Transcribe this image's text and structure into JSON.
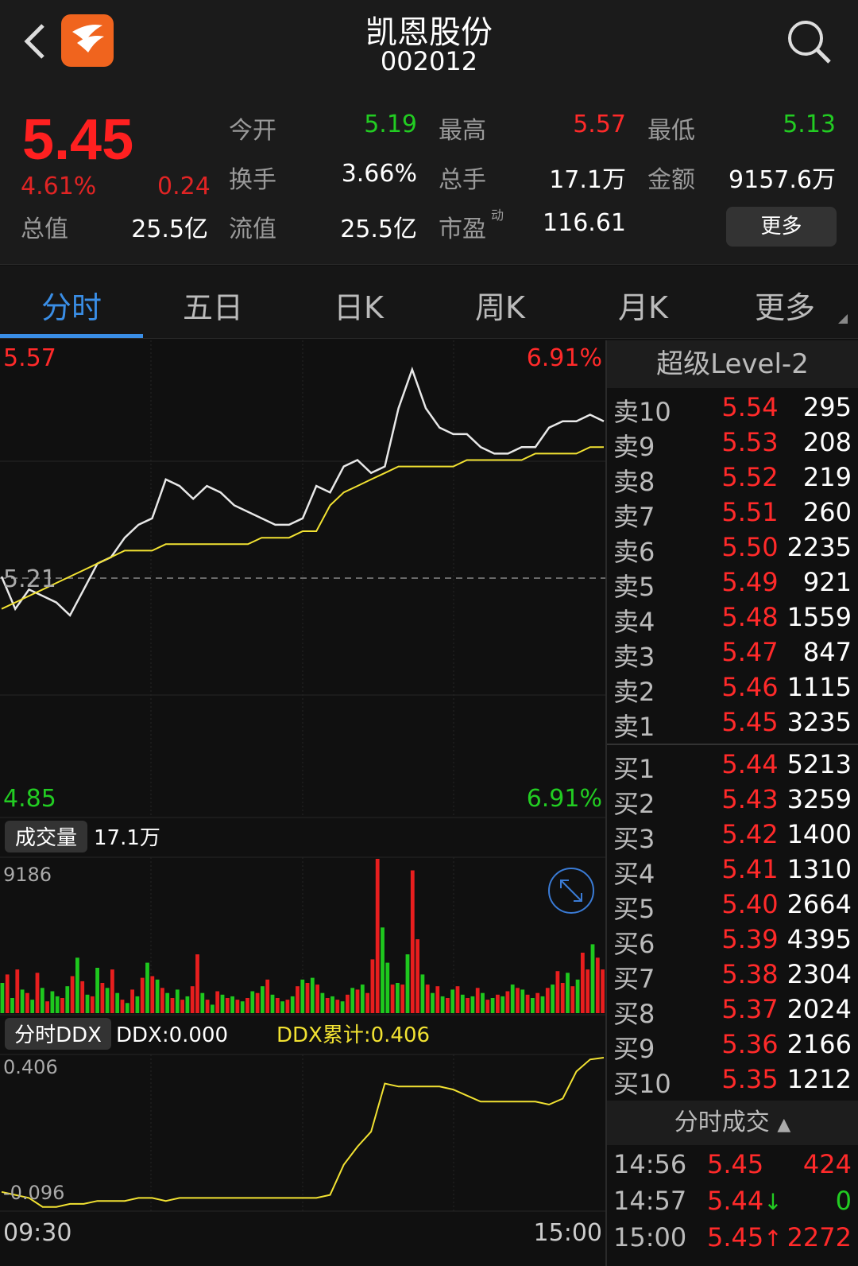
{
  "header": {
    "stock_name": "凯恩股份",
    "stock_code": "002012"
  },
  "quote": {
    "price": "5.45",
    "change_pct": "4.61%",
    "change": "0.24",
    "rows": [
      [
        {
          "label": "今开",
          "value": "5.19",
          "color": "#22cc22"
        },
        {
          "label": "最高",
          "value": "5.57",
          "color": "#ff2a2a"
        },
        {
          "label": "最低",
          "value": "5.13",
          "color": "#22cc22"
        }
      ],
      [
        {
          "label": "换手",
          "value": "3.66%",
          "color": "#ffffff"
        },
        {
          "label": "总手",
          "value": "17.1万",
          "color": "#ffffff"
        },
        {
          "label": "金额",
          "value": "9157.6万",
          "color": "#ffffff"
        }
      ],
      [
        {
          "label": "流值",
          "value": "25.5亿",
          "color": "#ffffff"
        },
        {
          "label": "市盈",
          "value": "116.61",
          "color": "#ffffff",
          "sup": "动"
        }
      ]
    ],
    "total_label": "总值",
    "total_value": "25.5亿",
    "more_label": "更多"
  },
  "tabs": [
    "分时",
    "五日",
    "日K",
    "周K",
    "月K",
    "更多"
  ],
  "chart": {
    "high_price": "5.57",
    "high_pct": "6.91%",
    "mid_price": "5.21",
    "low_price": "4.85",
    "low_pct": "6.91%",
    "volume_label": "成交量",
    "volume_value": "17.1万",
    "volume_max": "9186",
    "ddx_label": "分时DDX",
    "ddx_value": "DDX:0.000",
    "ddx_cum": "DDX累计:0.406",
    "ddx_top": "0.406",
    "ddx_bottom": "-0.096",
    "time_start": "09:30",
    "time_end": "15:00"
  },
  "chart_data": {
    "type": "line",
    "x_range": [
      "09:30",
      "15:00"
    ],
    "ylim": [
      4.85,
      5.57
    ],
    "reference_price": 5.21,
    "series": [
      {
        "values": [
          5.21,
          5.16,
          5.19,
          5.18,
          5.17,
          5.15,
          5.19,
          5.23,
          5.24,
          5.27,
          5.29,
          5.3,
          5.36,
          5.35,
          5.33,
          5.35,
          5.34,
          5.32,
          5.31,
          5.3,
          5.29,
          5.29,
          5.3,
          5.35,
          5.34,
          5.38,
          5.39,
          5.37,
          5.38,
          5.47,
          5.53,
          5.47,
          5.44,
          5.43,
          5.43,
          5.41,
          5.4,
          5.4,
          5.41,
          5.41,
          5.44,
          5.45,
          5.45,
          5.46,
          5.45
        ]
      },
      {
        "values": [
          5.16,
          5.17,
          5.18,
          5.19,
          5.2,
          5.21,
          5.22,
          5.23,
          5.24,
          5.25,
          5.25,
          5.25,
          5.26,
          5.26,
          5.26,
          5.26,
          5.26,
          5.26,
          5.26,
          5.27,
          5.27,
          5.27,
          5.28,
          5.28,
          5.32,
          5.34,
          5.35,
          5.36,
          5.37,
          5.38,
          5.38,
          5.38,
          5.38,
          5.38,
          5.39,
          5.39,
          5.39,
          5.39,
          5.39,
          5.4,
          5.4,
          5.4,
          5.4,
          5.41,
          5.41
        ]
      }
    ],
    "volume": {
      "max": 9186,
      "values": [
        1800,
        2300,
        900,
        2600,
        1400,
        1200,
        800,
        2400,
        1500,
        700,
        1300,
        1000,
        900,
        1600,
        2200,
        3300,
        1900,
        1100,
        1000,
        2700,
        1800,
        1500,
        2600,
        1200,
        800,
        600,
        1400,
        1000,
        2100,
        3000,
        2200,
        2000,
        1500,
        1200,
        900,
        1400,
        800,
        1000,
        1600,
        3500,
        1200,
        800,
        500,
        1300,
        1100,
        900,
        1000,
        800,
        700,
        900,
        1300,
        1200,
        1600,
        2000,
        1100,
        900,
        700,
        800,
        1000,
        1600,
        2000,
        1800,
        2100,
        1700,
        1200,
        900,
        1000,
        800,
        700,
        1100,
        1500,
        1400,
        1700,
        1200,
        3200,
        9186,
        5100,
        3000,
        1700,
        1800,
        1700,
        3500,
        8500,
        4400,
        2300,
        1700,
        1200,
        1600,
        1000,
        900,
        1400,
        1600,
        1100,
        900,
        1000,
        1500,
        1200,
        800,
        900,
        1100,
        1000,
        1300,
        1700,
        1500,
        1400,
        1100,
        900,
        1200,
        1000,
        1500,
        1700,
        2500,
        1800,
        2400,
        1600,
        2000,
        3600,
        2600,
        4100,
        3300,
        2600
      ],
      "colors": [
        "g",
        "r",
        "g",
        "r",
        "g",
        "r",
        "g",
        "r",
        "g",
        "r",
        "g",
        "g",
        "r",
        "g",
        "r",
        "g",
        "r",
        "g",
        "r",
        "g",
        "r",
        "g",
        "r",
        "g",
        "r",
        "g",
        "r",
        "g",
        "r",
        "g",
        "r",
        "g",
        "r",
        "g",
        "r",
        "g",
        "r",
        "g",
        "r",
        "r",
        "g",
        "r",
        "g",
        "r",
        "g",
        "r",
        "g",
        "r",
        "g",
        "r",
        "g",
        "r",
        "g",
        "r",
        "g",
        "r",
        "g",
        "r",
        "g",
        "r",
        "g",
        "r",
        "g",
        "r",
        "g",
        "r",
        "g",
        "r",
        "g",
        "r",
        "g",
        "r",
        "g",
        "r",
        "r",
        "r",
        "g",
        "g",
        "r",
        "g",
        "r",
        "g",
        "r",
        "r",
        "g",
        "r",
        "g",
        "r",
        "g",
        "r",
        "g",
        "r",
        "g",
        "r",
        "g",
        "r",
        "g",
        "r",
        "g",
        "r",
        "g",
        "r",
        "g",
        "r",
        "g",
        "r",
        "g",
        "r",
        "g",
        "r",
        "g",
        "r",
        "r",
        "g",
        "r",
        "g",
        "r",
        "r",
        "g",
        "r",
        "r"
      ]
    },
    "ddx_cumulative": [
      -0.04,
      -0.05,
      -0.06,
      -0.09,
      -0.09,
      -0.08,
      -0.08,
      -0.07,
      -0.07,
      -0.07,
      -0.06,
      -0.06,
      -0.07,
      -0.06,
      -0.06,
      -0.06,
      -0.06,
      -0.06,
      -0.06,
      -0.06,
      -0.06,
      -0.06,
      -0.06,
      -0.06,
      -0.05,
      0.05,
      0.11,
      0.16,
      0.32,
      0.31,
      0.31,
      0.31,
      0.31,
      0.3,
      0.28,
      0.26,
      0.26,
      0.26,
      0.26,
      0.26,
      0.25,
      0.27,
      0.36,
      0.4,
      0.406
    ]
  },
  "order_book": {
    "title": "超级Level-2",
    "asks": [
      {
        "label": "卖10",
        "price": "5.54",
        "vol": "295"
      },
      {
        "label": "卖9",
        "price": "5.53",
        "vol": "208"
      },
      {
        "label": "卖8",
        "price": "5.52",
        "vol": "219"
      },
      {
        "label": "卖7",
        "price": "5.51",
        "vol": "260"
      },
      {
        "label": "卖6",
        "price": "5.50",
        "vol": "2235"
      },
      {
        "label": "卖5",
        "price": "5.49",
        "vol": "921"
      },
      {
        "label": "卖4",
        "price": "5.48",
        "vol": "1559"
      },
      {
        "label": "卖3",
        "price": "5.47",
        "vol": "847"
      },
      {
        "label": "卖2",
        "price": "5.46",
        "vol": "1115"
      },
      {
        "label": "卖1",
        "price": "5.45",
        "vol": "3235"
      }
    ],
    "bids": [
      {
        "label": "买1",
        "price": "5.44",
        "vol": "5213"
      },
      {
        "label": "买2",
        "price": "5.43",
        "vol": "3259"
      },
      {
        "label": "买3",
        "price": "5.42",
        "vol": "1400"
      },
      {
        "label": "买4",
        "price": "5.41",
        "vol": "1310"
      },
      {
        "label": "买5",
        "price": "5.40",
        "vol": "2664"
      },
      {
        "label": "买6",
        "price": "5.39",
        "vol": "4395"
      },
      {
        "label": "买7",
        "price": "5.38",
        "vol": "2304"
      },
      {
        "label": "买8",
        "price": "5.37",
        "vol": "2024"
      },
      {
        "label": "买9",
        "price": "5.36",
        "vol": "2166"
      },
      {
        "label": "买10",
        "price": "5.35",
        "vol": "1212"
      }
    ]
  },
  "ticks": {
    "title": "分时成交",
    "rows": [
      {
        "time": "14:56",
        "price": "5.45",
        "arrow": "",
        "vol": "424",
        "vol_color": "#ff2a2a"
      },
      {
        "time": "14:57",
        "price": "5.44",
        "arrow": "↓",
        "arrow_color": "#22cc22",
        "vol": "0",
        "vol_color": "#22cc22"
      },
      {
        "time": "15:00",
        "price": "5.45",
        "arrow": "↑",
        "arrow_color": "#ff2a2a",
        "vol": "2272",
        "vol_color": "#ff2a2a"
      }
    ]
  }
}
